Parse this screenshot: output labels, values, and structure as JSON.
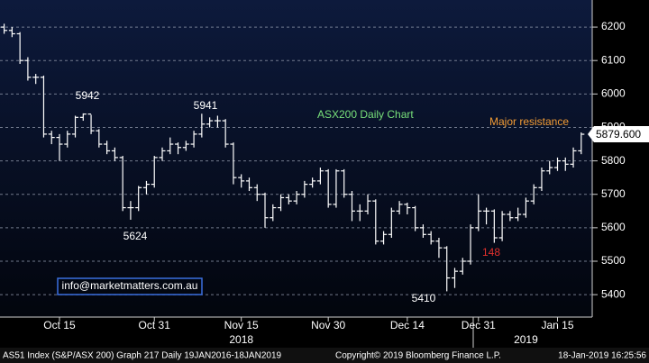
{
  "chart_data": {
    "type": "ohlc",
    "title": "ASX200 Daily Chart",
    "color": "#ffffff",
    "grid": true,
    "x": [
      "2018-10-04",
      "2018-10-05",
      "2018-10-08",
      "2018-10-09",
      "2018-10-10",
      "2018-10-11",
      "2018-10-12",
      "2018-10-15",
      "2018-10-16",
      "2018-10-17",
      "2018-10-18",
      "2018-10-19",
      "2018-10-22",
      "2018-10-23",
      "2018-10-24",
      "2018-10-25",
      "2018-10-26",
      "2018-10-29",
      "2018-10-30",
      "2018-10-31",
      "2018-11-01",
      "2018-11-02",
      "2018-11-05",
      "2018-11-06",
      "2018-11-07",
      "2018-11-08",
      "2018-11-09",
      "2018-11-12",
      "2018-11-13",
      "2018-11-14",
      "2018-11-15",
      "2018-11-16",
      "2018-11-19",
      "2018-11-20",
      "2018-11-21",
      "2018-11-22",
      "2018-11-23",
      "2018-11-26",
      "2018-11-27",
      "2018-11-28",
      "2018-11-29",
      "2018-11-30",
      "2018-12-03",
      "2018-12-04",
      "2018-12-05",
      "2018-12-06",
      "2018-12-07",
      "2018-12-10",
      "2018-12-11",
      "2018-12-12",
      "2018-12-13",
      "2018-12-14",
      "2018-12-17",
      "2018-12-18",
      "2018-12-19",
      "2018-12-20",
      "2018-12-21",
      "2018-12-24",
      "2018-12-27",
      "2018-12-28",
      "2018-12-31",
      "2019-01-02",
      "2019-01-03",
      "2019-01-04",
      "2019-01-07",
      "2019-01-08",
      "2019-01-09",
      "2019-01-10",
      "2019-01-11",
      "2019-01-14",
      "2019-01-15",
      "2019-01-16",
      "2019-01-17",
      "2019-01-18"
    ],
    "open": [
      6200,
      6190,
      6180,
      6100,
      6050,
      6050,
      5880,
      5870,
      5850,
      5880,
      5930,
      5940,
      5890,
      5850,
      5830,
      5810,
      5660,
      5660,
      5720,
      5730,
      5810,
      5830,
      5850,
      5840,
      5850,
      5880,
      5910,
      5920,
      5920,
      5850,
      5750,
      5740,
      5720,
      5700,
      5630,
      5660,
      5690,
      5680,
      5700,
      5730,
      5740,
      5770,
      5670,
      5770,
      5700,
      5650,
      5650,
      5680,
      5560,
      5580,
      5650,
      5670,
      5660,
      5600,
      5580,
      5560,
      5540,
      5450,
      5470,
      5500,
      5600,
      5650,
      5650,
      5570,
      5640,
      5630,
      5640,
      5680,
      5720,
      5770,
      5780,
      5800,
      5790,
      5830
    ],
    "high": [
      6210,
      6200,
      6185,
      6110,
      6060,
      6055,
      5890,
      5880,
      5890,
      5935,
      5942,
      5938,
      5895,
      5860,
      5840,
      5815,
      5680,
      5725,
      5740,
      5815,
      5840,
      5870,
      5855,
      5860,
      5890,
      5941,
      5930,
      5935,
      5925,
      5855,
      5760,
      5750,
      5730,
      5705,
      5670,
      5700,
      5700,
      5710,
      5740,
      5750,
      5780,
      5775,
      5775,
      5775,
      5710,
      5670,
      5700,
      5685,
      5590,
      5660,
      5680,
      5675,
      5665,
      5610,
      5590,
      5570,
      5545,
      5480,
      5510,
      5610,
      5700,
      5660,
      5655,
      5650,
      5650,
      5660,
      5690,
      5730,
      5780,
      5800,
      5810,
      5810,
      5840,
      5885
    ],
    "low": [
      6180,
      6170,
      6090,
      6040,
      6030,
      5870,
      5850,
      5800,
      5840,
      5870,
      5920,
      5880,
      5840,
      5820,
      5800,
      5650,
      5624,
      5650,
      5700,
      5720,
      5800,
      5820,
      5820,
      5830,
      5840,
      5870,
      5900,
      5900,
      5840,
      5730,
      5720,
      5710,
      5680,
      5600,
      5620,
      5650,
      5670,
      5670,
      5690,
      5720,
      5730,
      5660,
      5660,
      5690,
      5620,
      5620,
      5640,
      5550,
      5550,
      5570,
      5640,
      5640,
      5590,
      5570,
      5550,
      5510,
      5410,
      5420,
      5460,
      5490,
      5590,
      5610,
      5555,
      5560,
      5620,
      5620,
      5630,
      5670,
      5710,
      5760,
      5770,
      5770,
      5780,
      5820
    ],
    "close": [
      6190,
      6180,
      6100,
      6050,
      6050,
      5880,
      5870,
      5850,
      5880,
      5930,
      5940,
      5890,
      5850,
      5830,
      5810,
      5660,
      5660,
      5720,
      5730,
      5810,
      5830,
      5850,
      5840,
      5850,
      5880,
      5910,
      5920,
      5920,
      5850,
      5750,
      5740,
      5720,
      5700,
      5630,
      5660,
      5690,
      5680,
      5700,
      5730,
      5740,
      5770,
      5670,
      5770,
      5700,
      5650,
      5650,
      5680,
      5560,
      5580,
      5650,
      5670,
      5660,
      5600,
      5580,
      5560,
      5540,
      5450,
      5470,
      5500,
      5600,
      5650,
      5650,
      5570,
      5640,
      5630,
      5640,
      5680,
      5720,
      5770,
      5780,
      5800,
      5790,
      5830,
      5879.6
    ],
    "last_value_label": "5879.600",
    "ylim": [
      5333,
      6281
    ],
    "yticks": [
      5400,
      5500,
      5600,
      5700,
      5800,
      5900,
      6000,
      6100,
      6200
    ],
    "xticks": [
      {
        "value": "2018-10-15",
        "label": "Oct 15"
      },
      {
        "value": "2018-10-31",
        "label": "Oct 31"
      },
      {
        "value": "2018-11-15",
        "label": "Nov 15"
      },
      {
        "value": "2018-11-30",
        "label": "Nov 30"
      },
      {
        "value": "2018-12-14",
        "label": "Dec 14"
      },
      {
        "value": "2018-12-31",
        "label": "Dec 31"
      },
      {
        "value": "2019-01-15",
        "label": "Jan 15"
      }
    ],
    "year_ticks": [
      {
        "value": "2018-11-15",
        "label": "2018"
      },
      {
        "value": "2019-01-09",
        "label": "2019"
      }
    ],
    "annotations": [
      "5942",
      "5624",
      "5941",
      "5410",
      "Major resistance",
      "148",
      "info@marketmatters.com.au"
    ],
    "footer": [
      "AS51 Index (S&P/ASX 200) Graph 217  Daily 19JAN2016-18JAN2019",
      "Copyright© 2019 Bloomberg Finance L.P.",
      "18-Jan-2019 16:25:56"
    ]
  }
}
